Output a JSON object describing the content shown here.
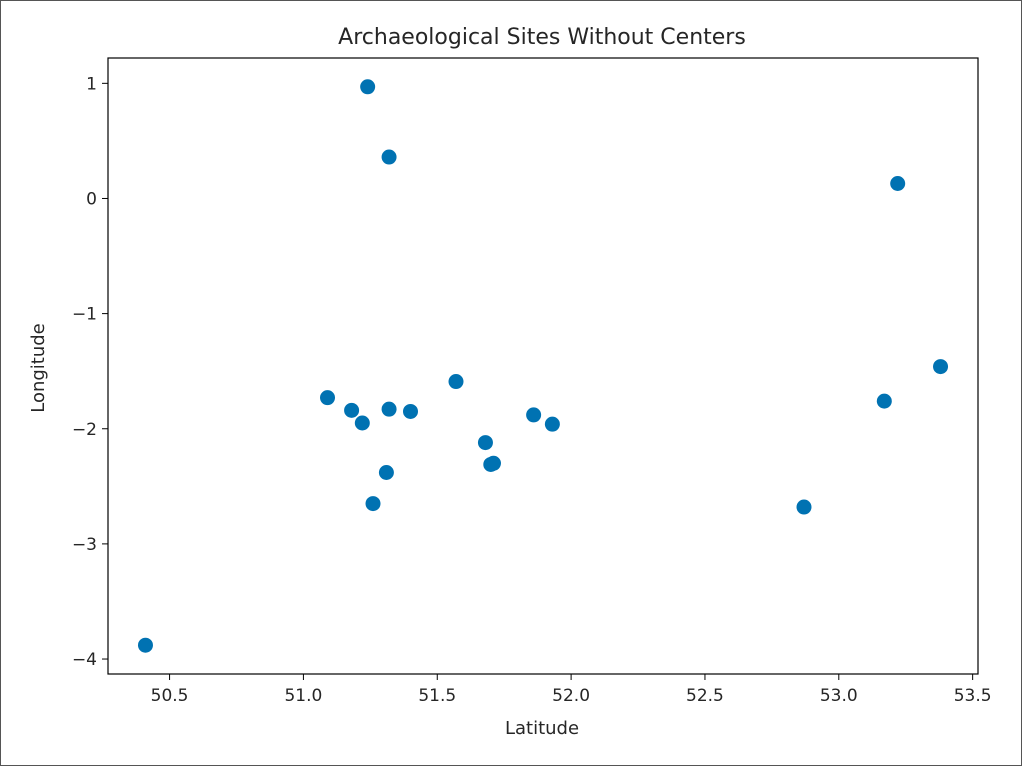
{
  "chart_data": {
    "type": "scatter",
    "title": "Archaeological Sites Without Centers",
    "xlabel": "Latitude",
    "ylabel": "Longitude",
    "xlim": [
      50.27,
      53.52
    ],
    "ylim": [
      -4.13,
      1.22
    ],
    "xticks": [
      50.5,
      51.0,
      51.5,
      52.0,
      52.5,
      53.0,
      53.5
    ],
    "xtick_labels": [
      "50.5",
      "51.0",
      "51.5",
      "52.0",
      "52.5",
      "53.0",
      "53.5"
    ],
    "yticks": [
      -4,
      -3,
      -2,
      -1,
      0,
      1
    ],
    "ytick_labels": [
      "−4",
      "−3",
      "−2",
      "−1",
      "0",
      "1"
    ],
    "grid": false,
    "marker_color": "#0072b2",
    "points": [
      {
        "x": 50.41,
        "y": -3.88
      },
      {
        "x": 51.09,
        "y": -1.73
      },
      {
        "x": 51.18,
        "y": -1.84
      },
      {
        "x": 51.22,
        "y": -1.95
      },
      {
        "x": 51.24,
        "y": 0.97
      },
      {
        "x": 51.26,
        "y": -2.65
      },
      {
        "x": 51.31,
        "y": -2.38
      },
      {
        "x": 51.32,
        "y": -1.83
      },
      {
        "x": 51.32,
        "y": 0.36
      },
      {
        "x": 51.4,
        "y": -1.85
      },
      {
        "x": 51.57,
        "y": -1.59
      },
      {
        "x": 51.68,
        "y": -2.12
      },
      {
        "x": 51.7,
        "y": -2.31
      },
      {
        "x": 51.71,
        "y": -2.3
      },
      {
        "x": 51.86,
        "y": -1.88
      },
      {
        "x": 51.93,
        "y": -1.96
      },
      {
        "x": 52.87,
        "y": -2.68
      },
      {
        "x": 53.17,
        "y": -1.76
      },
      {
        "x": 53.22,
        "y": 0.13
      },
      {
        "x": 53.38,
        "y": -1.46
      }
    ]
  }
}
